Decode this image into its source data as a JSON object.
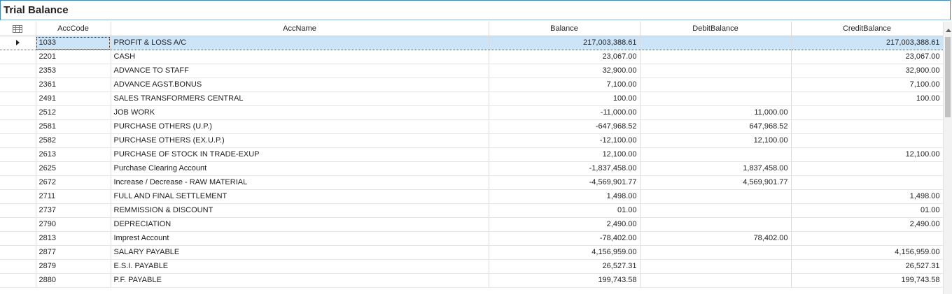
{
  "window": {
    "title": "Trial Balance"
  },
  "columns": {
    "acc_code": "AccCode",
    "acc_name": "AccName",
    "balance": "Balance",
    "debit": "DebitBalance",
    "credit": "CreditBalance"
  },
  "rows": [
    {
      "code": "1033",
      "name": "PROFIT & LOSS A/C",
      "balance": "217,003,388.61",
      "debit": "",
      "credit": "217,003,388.61"
    },
    {
      "code": "2201",
      "name": "CASH",
      "balance": "23,067.00",
      "debit": "",
      "credit": "23,067.00"
    },
    {
      "code": "2353",
      "name": "ADVANCE TO STAFF",
      "balance": "32,900.00",
      "debit": "",
      "credit": "32,900.00"
    },
    {
      "code": "2361",
      "name": "ADVANCE AGST.BONUS",
      "balance": "7,100.00",
      "debit": "",
      "credit": "7,100.00"
    },
    {
      "code": "2491",
      "name": "SALES TRANSFORMERS CENTRAL",
      "balance": "100.00",
      "debit": "",
      "credit": "100.00"
    },
    {
      "code": "2512",
      "name": "JOB WORK",
      "balance": "-11,000.00",
      "debit": "11,000.00",
      "credit": ""
    },
    {
      "code": "2581",
      "name": "PURCHASE OTHERS (U.P.)",
      "balance": "-647,968.52",
      "debit": "647,968.52",
      "credit": ""
    },
    {
      "code": "2582",
      "name": "PURCHASE OTHERS (EX.U.P.)",
      "balance": "-12,100.00",
      "debit": "12,100.00",
      "credit": ""
    },
    {
      "code": "2613",
      "name": "PURCHASE OF STOCK IN TRADE-EXUP",
      "balance": "12,100.00",
      "debit": "",
      "credit": "12,100.00"
    },
    {
      "code": "2625",
      "name": "Purchase Clearing Account",
      "balance": "-1,837,458.00",
      "debit": "1,837,458.00",
      "credit": ""
    },
    {
      "code": "2672",
      "name": "Increase / Decrease - RAW MATERIAL",
      "balance": "-4,569,901.77",
      "debit": "4,569,901.77",
      "credit": ""
    },
    {
      "code": "2711",
      "name": "FULL AND FINAL SETTLEMENT",
      "balance": "1,498.00",
      "debit": "",
      "credit": "1,498.00"
    },
    {
      "code": "2737",
      "name": "REMMISSION & DISCOUNT",
      "balance": "01.00",
      "debit": "",
      "credit": "01.00"
    },
    {
      "code": "2790",
      "name": "DEPRECIATION",
      "balance": "2,490.00",
      "debit": "",
      "credit": "2,490.00"
    },
    {
      "code": "2813",
      "name": "Imprest Account",
      "balance": "-78,402.00",
      "debit": "78,402.00",
      "credit": ""
    },
    {
      "code": "2877",
      "name": "SALARY PAYABLE",
      "balance": "4,156,959.00",
      "debit": "",
      "credit": "4,156,959.00"
    },
    {
      "code": "2879",
      "name": "E.S.I. PAYABLE",
      "balance": "26,527.31",
      "debit": "",
      "credit": "26,527.31"
    },
    {
      "code": "2880",
      "name": "P.F. PAYABLE",
      "balance": "199,743.58",
      "debit": "",
      "credit": "199,743.58"
    }
  ],
  "selected_row_index": 0,
  "icons": {
    "column_chooser": "grid-icon",
    "row_indicator": "current-row-arrow-icon",
    "scroll_up": "scroll-up-arrow-icon"
  }
}
